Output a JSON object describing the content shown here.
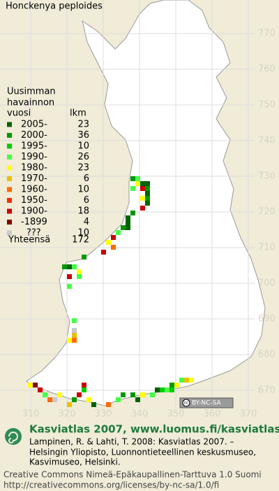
{
  "title": "Honckenya peploides",
  "legend": {
    "heading": [
      "Uusimman",
      "havainnon",
      "vuosi"
    ],
    "count_heading": "lkm",
    "items": [
      {
        "label": "2005-",
        "count": 23,
        "color": "#006400"
      },
      {
        "label": "2000-",
        "count": 36,
        "color": "#009a00"
      },
      {
        "label": "1995-",
        "count": 10,
        "color": "#00cc00"
      },
      {
        "label": "1990-",
        "count": 26,
        "color": "#44ff44"
      },
      {
        "label": "1980-",
        "count": 23,
        "color": "#ffff00"
      },
      {
        "label": "1970-",
        "count": 6,
        "color": "#e8c000"
      },
      {
        "label": "1960-",
        "count": 10,
        "color": "#ff6a00"
      },
      {
        "label": "1950-",
        "count": 6,
        "color": "#ff2a00"
      },
      {
        "label": "1900-",
        "count": 18,
        "color": "#cc0000"
      },
      {
        "label": "-1899",
        "count": 4,
        "color": "#880000"
      },
      {
        "label": "???",
        "count": 10,
        "color": "#c8c8c8"
      }
    ],
    "total_label": "Yhteensä",
    "total": 172
  },
  "grid": {
    "y_labels": [
      770,
      760,
      750,
      740,
      730,
      720,
      710,
      700,
      690,
      680,
      670
    ],
    "x_labels": [
      310,
      320,
      330,
      340,
      350,
      360,
      370
    ]
  },
  "badge": "BY-NC-SA",
  "footer": {
    "heading": "Kasviatlas 2007, www.luomus.fi/kasviatlas",
    "citation": [
      "Lampinen, R. & Lahti, T. 2008: Kasviatlas 2007. –",
      "Helsingin Yliopisto, Luonnontieteellinen keskusmuseo,",
      "Kasvimuseo, Helsinki."
    ],
    "license": [
      "Creative Commons Nimeä-Epäkaupallinen-Tarttuva 1.0 Suomi",
      "http://creativecommons.org/licenses/by-nc-sa/1.0/fi"
    ]
  }
}
